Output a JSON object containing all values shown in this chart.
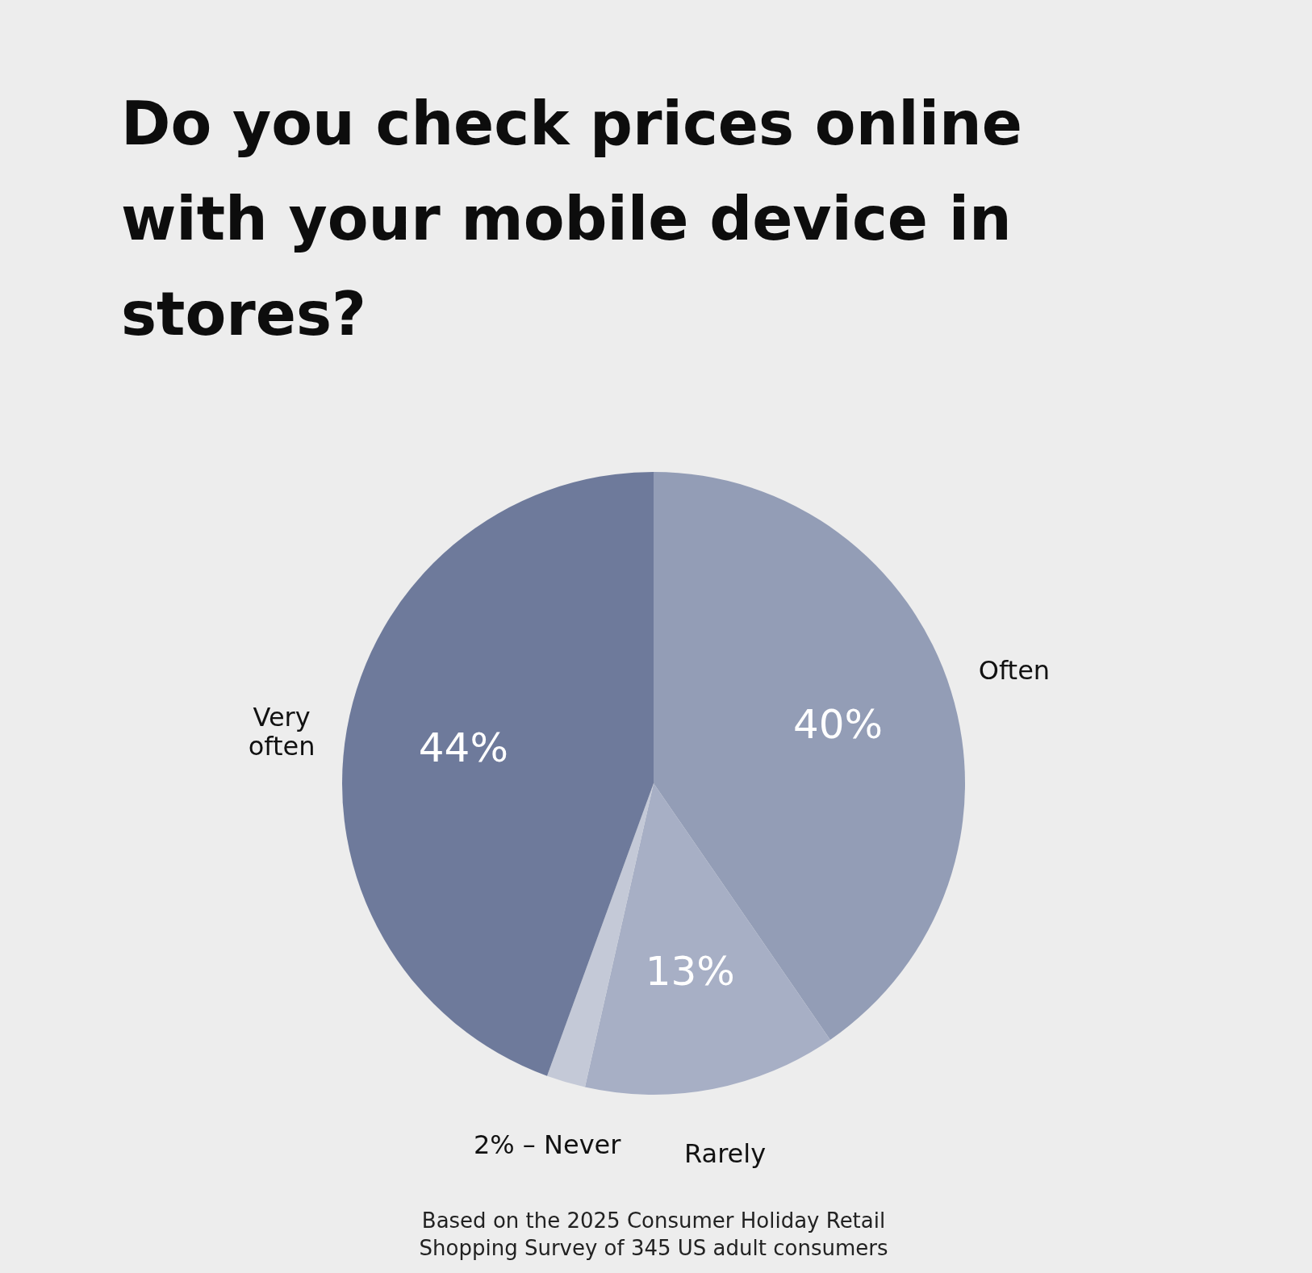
{
  "chart_data": {
    "type": "pie",
    "title": "Do you check prices online with your mobile device in stores?",
    "categories": [
      "Often",
      "Rarely",
      "Never",
      "Very often"
    ],
    "values": [
      40,
      13,
      2,
      44
    ],
    "colors": [
      "#939db6",
      "#a7afc5",
      "#c4c9d7",
      "#6e7a9b"
    ],
    "value_labels": [
      "40%",
      "13%",
      "2% –",
      "44%"
    ],
    "annotations": [
      "Based on the 2025 Consumer Holiday Retail Shopping Survey of 345 US adult consumers"
    ]
  }
}
